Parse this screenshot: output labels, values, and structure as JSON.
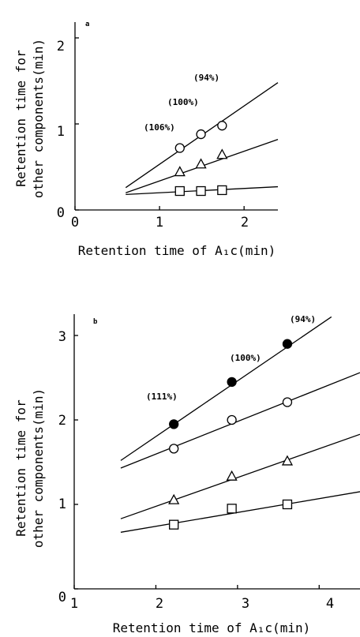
{
  "chart_data": [
    {
      "type": "scatter",
      "panel_label": "a",
      "xlabel": "Retention time of A₁c(min)",
      "ylabel_lines": [
        "Retention time for",
        "other components(min)"
      ],
      "xlim": [
        0,
        2.4
      ],
      "ylim": [
        0,
        2.2
      ],
      "xticks": [
        "0",
        "1",
        "2"
      ],
      "yticks": [
        "0",
        "1",
        "2"
      ],
      "annotations": [
        "(94%)",
        "(100%)",
        "(106%)"
      ],
      "series": [
        {
          "marker": "circle",
          "filled": false,
          "x": [
            1.24,
            1.49,
            1.74
          ],
          "y": [
            0.72,
            0.88,
            0.98
          ],
          "fit": [
            [
              0.6,
              0.26
            ],
            [
              2.4,
              1.48
            ]
          ]
        },
        {
          "marker": "triangle",
          "filled": false,
          "x": [
            1.24,
            1.49,
            1.74
          ],
          "y": [
            0.44,
            0.53,
            0.64
          ],
          "fit": [
            [
              0.6,
              0.2
            ],
            [
              2.4,
              0.82
            ]
          ]
        },
        {
          "marker": "square",
          "filled": false,
          "x": [
            1.24,
            1.49,
            1.74
          ],
          "y": [
            0.22,
            0.22,
            0.23
          ],
          "fit": [
            [
              0.6,
              0.18
            ],
            [
              2.4,
              0.27
            ]
          ]
        }
      ]
    },
    {
      "type": "scatter",
      "panel_label": "b",
      "xlabel": "Retention time of A₁c(min)",
      "ylabel_lines": [
        "Retention time for",
        "other components(min)"
      ],
      "xlim": [
        1,
        4.5
      ],
      "ylim": [
        0,
        3.2
      ],
      "xticks": [
        "1",
        "2",
        "3",
        "4"
      ],
      "yticks": [
        "0",
        "1",
        "2",
        "3"
      ],
      "annotations": [
        "(94%)",
        "(100%)",
        "(111%)"
      ],
      "series": [
        {
          "marker": "circle",
          "filled": true,
          "x": [
            2.22,
            2.93,
            3.61
          ],
          "y": [
            1.95,
            2.45,
            2.9
          ],
          "fit": [
            [
              1.57,
              1.52
            ],
            [
              4.15,
              3.22
            ]
          ]
        },
        {
          "marker": "circle",
          "filled": false,
          "x": [
            2.22,
            2.93,
            3.61
          ],
          "y": [
            1.66,
            2.0,
            2.21
          ],
          "fit": [
            [
              1.57,
              1.43
            ],
            [
              4.5,
              2.56
            ]
          ]
        },
        {
          "marker": "triangle",
          "filled": false,
          "x": [
            2.22,
            2.93,
            3.61
          ],
          "y": [
            1.05,
            1.33,
            1.51
          ],
          "fit": [
            [
              1.57,
              0.83
            ],
            [
              4.5,
              1.83
            ]
          ]
        },
        {
          "marker": "square",
          "filled": false,
          "x": [
            2.22,
            2.93,
            3.61
          ],
          "y": [
            0.76,
            0.95,
            1.0
          ],
          "fit": [
            [
              1.57,
              0.67
            ],
            [
              4.5,
              1.15
            ]
          ]
        }
      ]
    }
  ]
}
